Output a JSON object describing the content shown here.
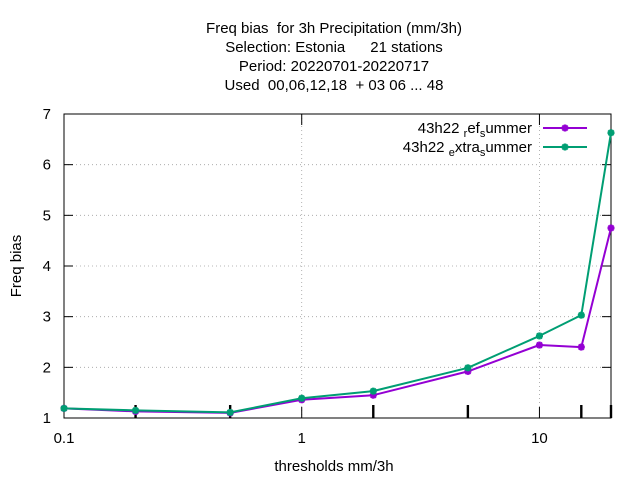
{
  "chart_data": {
    "type": "line",
    "title_lines": [
      "Freq bias  for 3h Precipitation (mm/3h)",
      "Selection: Estonia      21 stations",
      "Period: 20220701-20220717",
      "Used  00,06,12,18  + 03 06 ... 48"
    ],
    "xlabel": "thresholds mm/3h",
    "ylabel": "Freq bias",
    "xscale": "log",
    "xlim": [
      0.1,
      20
    ],
    "ylim": [
      1,
      7
    ],
    "x_ticks": [
      {
        "value": 0.1,
        "label": "0.1"
      },
      {
        "value": 1,
        "label": "1"
      },
      {
        "value": 10,
        "label": "10"
      }
    ],
    "x_minor_ticks": [
      0.2,
      0.5,
      2,
      5,
      15,
      20
    ],
    "y_ticks": [
      {
        "value": 1,
        "label": "1"
      },
      {
        "value": 2,
        "label": "2"
      },
      {
        "value": 3,
        "label": "3"
      },
      {
        "value": 4,
        "label": "4"
      },
      {
        "value": 5,
        "label": "5"
      },
      {
        "value": 6,
        "label": "6"
      },
      {
        "value": 7,
        "label": "7"
      }
    ],
    "grid": true,
    "legend_position": "top-right",
    "x": [
      0.1,
      0.2,
      0.5,
      1,
      2,
      5,
      10,
      15,
      20
    ],
    "series": [
      {
        "name_main": "43h22",
        "name_parts": [
          {
            "text": "r",
            "sub": true
          },
          {
            "text": "ef",
            "sub": false
          },
          {
            "text": "s",
            "sub": true
          },
          {
            "text": "ummer",
            "sub": false
          }
        ],
        "color": "#9400d3",
        "values": [
          1.19,
          1.13,
          1.1,
          1.36,
          1.45,
          1.92,
          2.44,
          2.4,
          4.75
        ]
      },
      {
        "name_main": "43h22",
        "name_parts": [
          {
            "text": "e",
            "sub": true
          },
          {
            "text": "xtra",
            "sub": false
          },
          {
            "text": "s",
            "sub": true
          },
          {
            "text": "ummer",
            "sub": false
          }
        ],
        "color": "#009e73",
        "values": [
          1.19,
          1.15,
          1.11,
          1.39,
          1.53,
          1.99,
          2.62,
          3.03,
          6.63
        ]
      }
    ]
  }
}
